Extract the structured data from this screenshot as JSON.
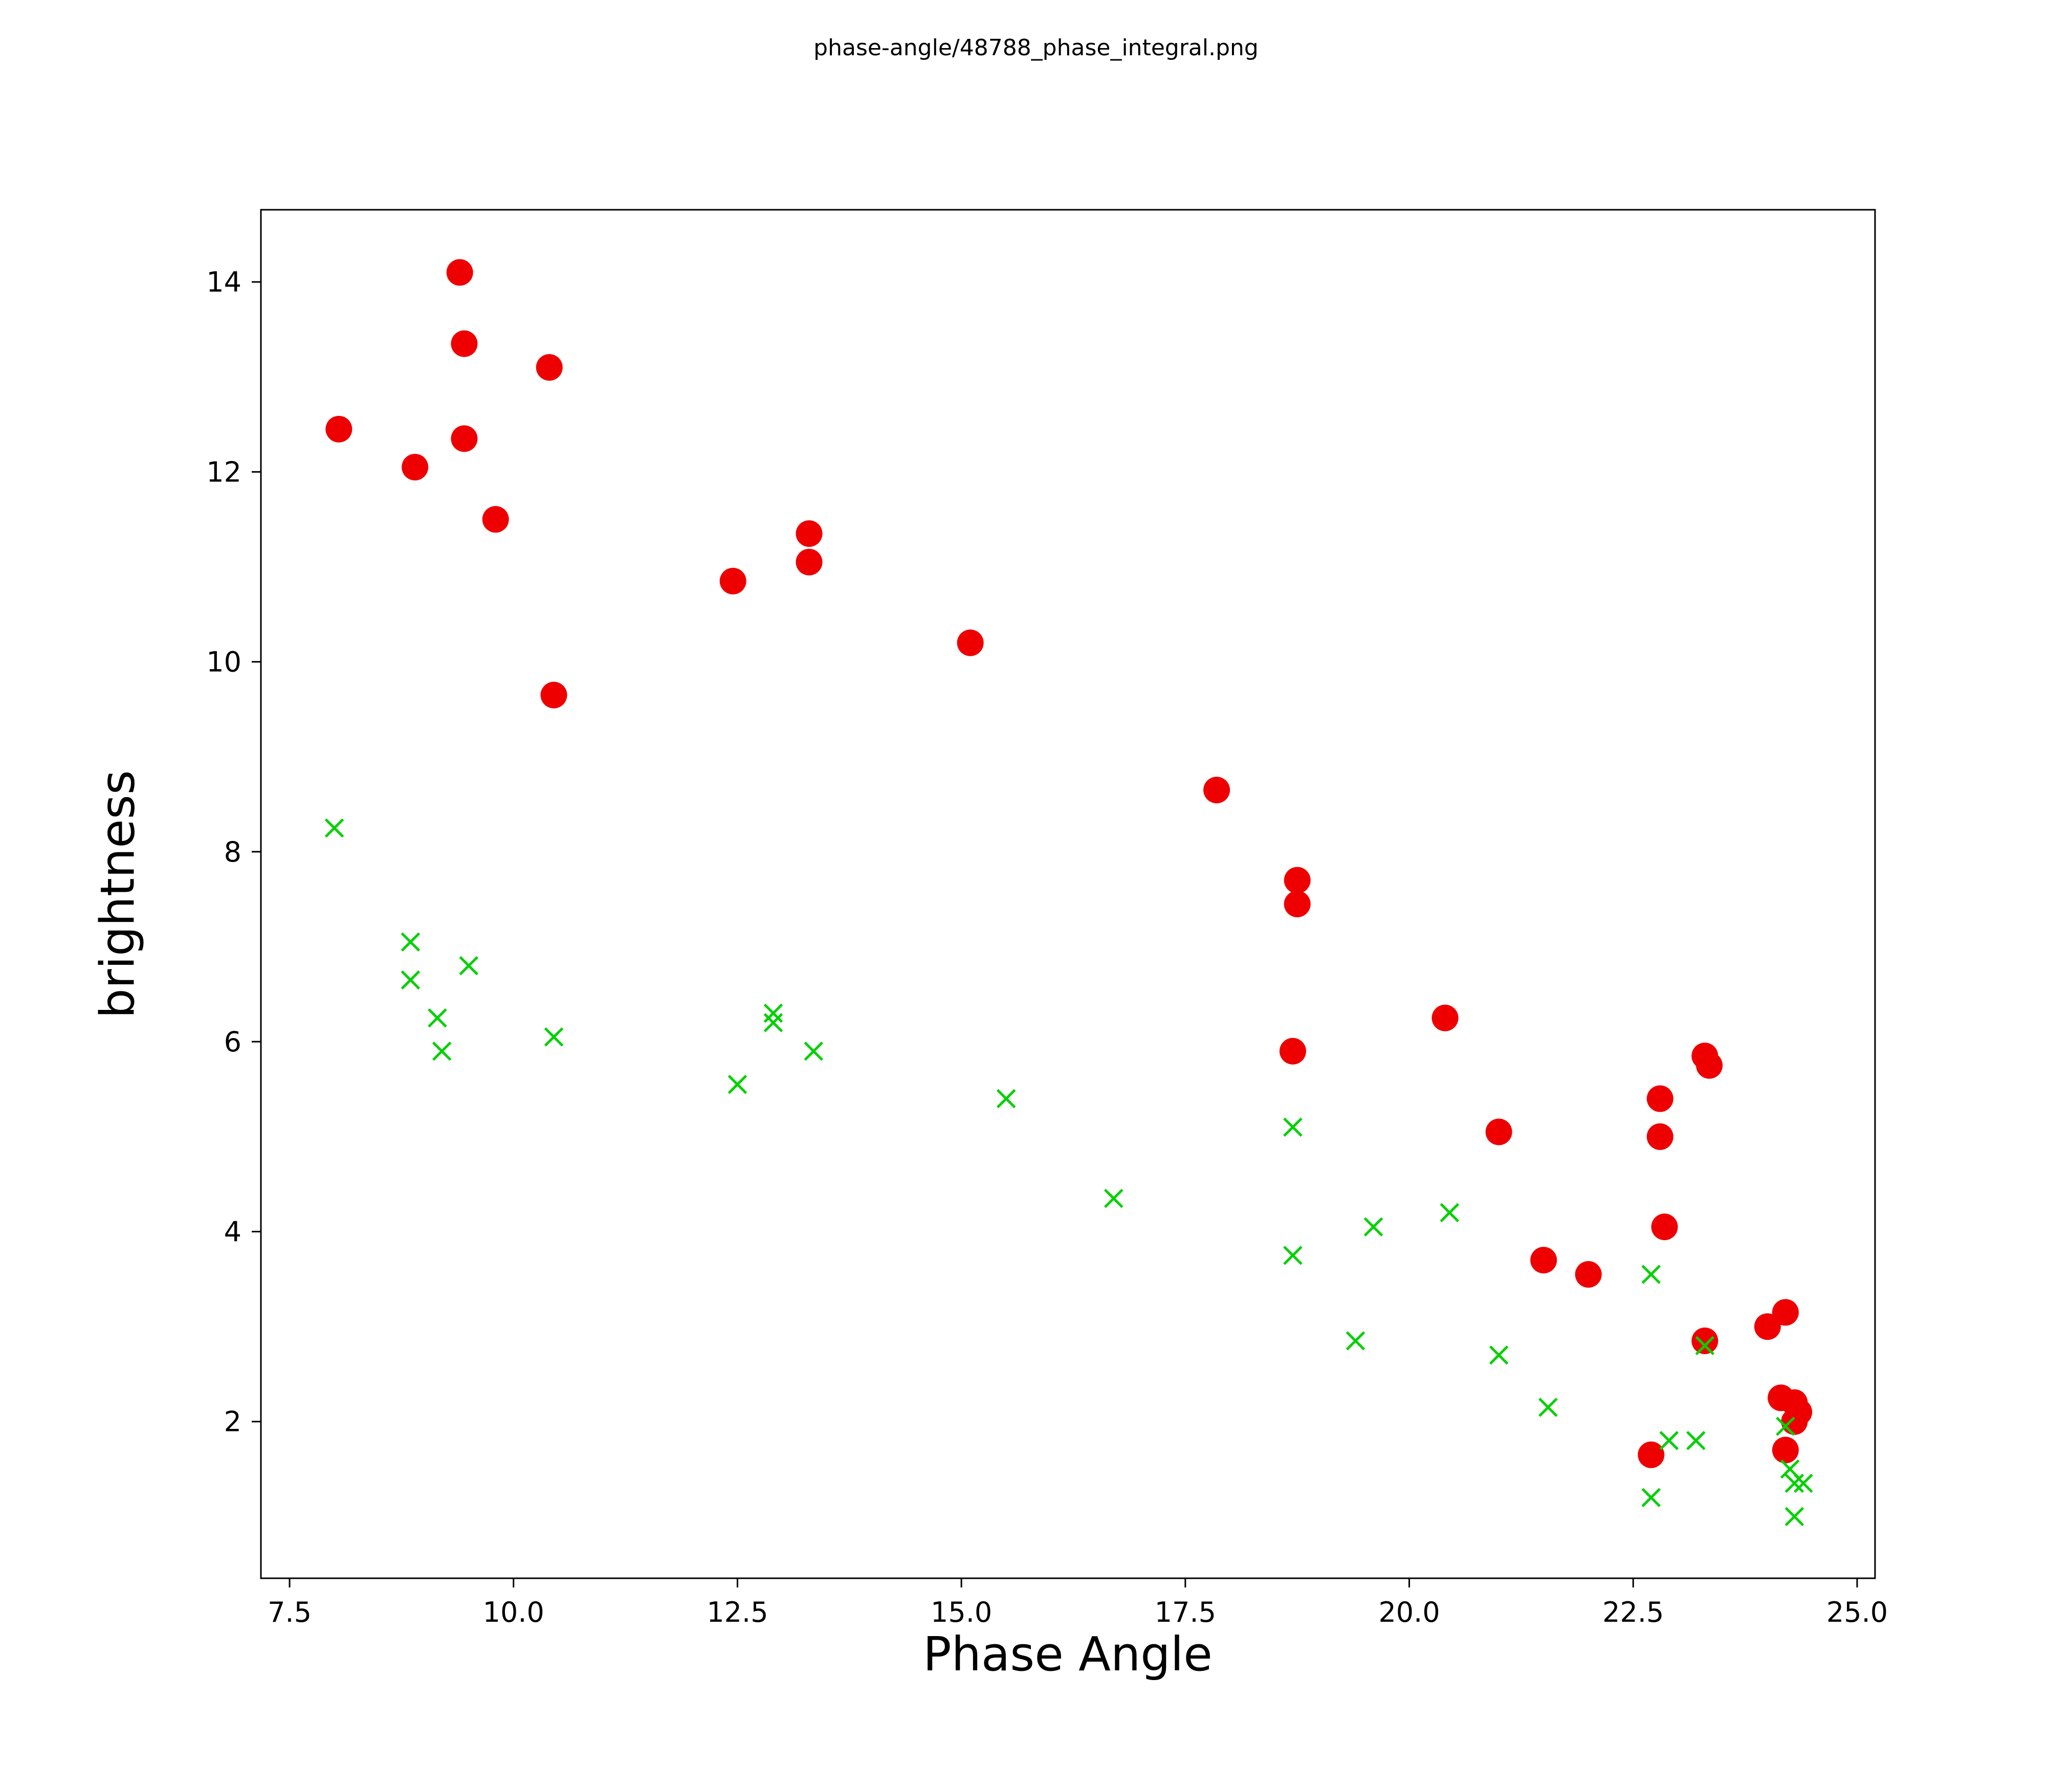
{
  "page": {
    "title": "phase-angle/48788_phase_integral.png"
  },
  "chart_data": {
    "type": "scatter",
    "title": "phase-angle/48788_phase_integral.png",
    "xlabel": "Phase Angle",
    "ylabel": "brightness",
    "xlim": [
      7.18,
      25.2
    ],
    "ylim": [
      0.35,
      14.76
    ],
    "x_ticks": [
      7.5,
      10.0,
      12.5,
      15.0,
      17.5,
      20.0,
      22.5,
      25.0
    ],
    "x_tick_labels": [
      "7.5",
      "10.0",
      "12.5",
      "15.0",
      "17.5",
      "20.0",
      "22.5",
      "25.0"
    ],
    "y_ticks": [
      2,
      4,
      6,
      8,
      10,
      12,
      14
    ],
    "y_tick_labels": [
      "2",
      "4",
      "6",
      "8",
      "10",
      "12",
      "14"
    ],
    "grid": false,
    "legend_position": "none",
    "series": [
      {
        "name": "red-filled-circles",
        "marker": "circle",
        "color": "#ee0000",
        "points": [
          [
            8.05,
            12.45
          ],
          [
            8.9,
            12.05
          ],
          [
            9.4,
            14.1
          ],
          [
            9.45,
            13.35
          ],
          [
            9.45,
            12.35
          ],
          [
            9.8,
            11.5
          ],
          [
            10.4,
            13.1
          ],
          [
            10.45,
            9.65
          ],
          [
            12.45,
            10.85
          ],
          [
            13.3,
            11.35
          ],
          [
            13.3,
            11.05
          ],
          [
            15.1,
            10.2
          ],
          [
            17.85,
            8.65
          ],
          [
            18.75,
            7.7
          ],
          [
            18.75,
            7.45
          ],
          [
            18.7,
            5.9
          ],
          [
            20.4,
            6.25
          ],
          [
            21.0,
            5.05
          ],
          [
            21.5,
            3.7
          ],
          [
            22.0,
            3.55
          ],
          [
            22.8,
            5.4
          ],
          [
            22.8,
            5.0
          ],
          [
            22.85,
            4.05
          ],
          [
            22.7,
            1.65
          ],
          [
            23.3,
            5.85
          ],
          [
            23.35,
            5.75
          ],
          [
            23.3,
            2.85
          ],
          [
            24.0,
            3.0
          ],
          [
            24.2,
            3.15
          ],
          [
            24.15,
            2.25
          ],
          [
            24.3,
            2.2
          ],
          [
            24.35,
            2.1
          ],
          [
            24.3,
            2.0
          ],
          [
            24.2,
            1.7
          ]
        ]
      },
      {
        "name": "green-cross-markers",
        "marker": "x",
        "color": "#00d000",
        "points": [
          [
            8.0,
            8.25
          ],
          [
            8.85,
            7.05
          ],
          [
            8.85,
            6.65
          ],
          [
            9.15,
            6.25
          ],
          [
            9.2,
            5.9
          ],
          [
            9.5,
            6.8
          ],
          [
            10.45,
            6.05
          ],
          [
            12.5,
            5.55
          ],
          [
            12.9,
            6.3
          ],
          [
            12.9,
            6.2
          ],
          [
            13.35,
            5.9
          ],
          [
            15.5,
            5.4
          ],
          [
            16.7,
            4.35
          ],
          [
            18.7,
            5.1
          ],
          [
            18.7,
            3.75
          ],
          [
            19.4,
            2.85
          ],
          [
            19.6,
            4.05
          ],
          [
            20.45,
            4.2
          ],
          [
            21.0,
            2.7
          ],
          [
            21.55,
            2.15
          ],
          [
            22.7,
            3.55
          ],
          [
            22.7,
            1.2
          ],
          [
            22.9,
            1.8
          ],
          [
            23.2,
            1.8
          ],
          [
            23.3,
            2.8
          ],
          [
            24.2,
            1.95
          ],
          [
            24.25,
            1.5
          ],
          [
            24.3,
            1.35
          ],
          [
            24.4,
            1.35
          ],
          [
            24.3,
            1.0
          ]
        ]
      }
    ]
  }
}
